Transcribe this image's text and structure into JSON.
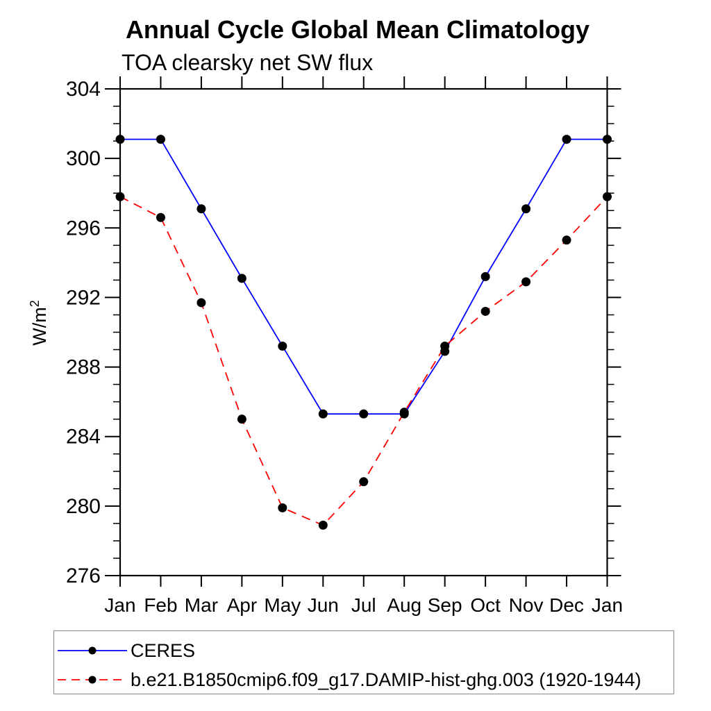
{
  "title": "Annual Cycle Global Mean Climatology",
  "subtitle": "TOA clearsky net SW flux",
  "ylabel": {
    "base": "W/m",
    "sup": "2"
  },
  "legend": {
    "position": "bottom",
    "border_color": "#888888"
  },
  "chart_data": {
    "type": "line",
    "title": "Annual Cycle Global Mean Climatology",
    "subtitle": "TOA clearsky net SW flux",
    "xlabel": "",
    "ylabel": "W/m²",
    "x_categories": [
      "Jan",
      "Feb",
      "Mar",
      "Apr",
      "May",
      "Jun",
      "Jul",
      "Aug",
      "Sep",
      "Oct",
      "Nov",
      "Dec",
      "Jan"
    ],
    "ylim": [
      276,
      304
    ],
    "ytick_step_major": 4,
    "ytick_step_minor": 1,
    "grid": false,
    "legend_position": "bottom",
    "marker": {
      "shape": "circle",
      "color": "#000000"
    },
    "axis_color": "#000000",
    "series": [
      {
        "name": "CERES",
        "color": "#0000ff",
        "line_style": "solid",
        "values": [
          301.1,
          301.1,
          297.1,
          293.1,
          289.2,
          285.3,
          285.3,
          285.3,
          288.9,
          293.2,
          297.1,
          301.1,
          301.1
        ]
      },
      {
        "name": "b.e21.B1850cmip6.f09_g17.DAMIP-hist-ghg.003 (1920-1944)",
        "color": "#ff0000",
        "line_style": "dashed",
        "values": [
          297.8,
          296.6,
          291.7,
          285.0,
          279.9,
          278.9,
          281.4,
          285.4,
          289.2,
          291.2,
          292.9,
          295.3,
          297.8
        ]
      }
    ]
  }
}
